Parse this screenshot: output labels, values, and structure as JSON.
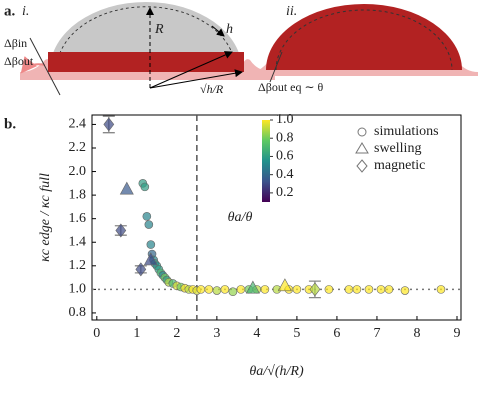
{
  "panel_a": {
    "label": "a.",
    "left": {
      "label": "i.",
      "R": "R",
      "h": "h",
      "delta_in": "Δβin",
      "delta_out": "Δβout",
      "sqrt": "√h/R"
    },
    "right": {
      "label": "ii.",
      "delta_eq": "Δβout eq ∼ θ"
    }
  },
  "chart_data": {
    "type": "scatter",
    "panel_label": "b.",
    "x_label": "θa/√(h/R)",
    "y_label": "κc edge / κc full",
    "xlim": [
      -0.12,
      9.1
    ],
    "ylim": [
      0.74,
      2.48
    ],
    "xticks": [
      0,
      1,
      2,
      3,
      4,
      5,
      6,
      7,
      8,
      9
    ],
    "yticks": [
      0.8,
      {
        "value": 1,
        "label": "1.0"
      },
      1.2,
      1.4,
      1.6,
      1.8,
      {
        "value": 2,
        "label": "2.0"
      },
      2.2,
      2.4
    ],
    "vline": 2.5,
    "hline": 1,
    "colorbar": {
      "label": "θa/θ",
      "clim": [
        0.1,
        1.0
      ],
      "ticks": [
        0.2,
        0.4,
        0.6,
        0.8,
        {
          "value": 1,
          "label": "1.0"
        }
      ]
    },
    "legend": "upper right",
    "series": [
      {
        "name": "simulations",
        "marker": "circle",
        "x": [
          1.15,
          1.2,
          1.25,
          1.3,
          1.35,
          1.38,
          1.42,
          1.45,
          1.5,
          1.55,
          1.6,
          1.65,
          1.7,
          1.75,
          1.8,
          1.9,
          2.0,
          2.1,
          2.2,
          2.3,
          2.4,
          2.5,
          2.6,
          2.8,
          3.0,
          3.2,
          3.4,
          3.6,
          3.8,
          4.0,
          4.2,
          4.5,
          4.8,
          5.0,
          5.3,
          5.8,
          6.3,
          6.5,
          6.8,
          7.1,
          7.3,
          7.7,
          8.6
        ],
        "values": [
          1.9,
          1.87,
          1.62,
          1.55,
          1.38,
          1.3,
          1.25,
          1.22,
          1.2,
          1.17,
          1.14,
          1.12,
          1.1,
          1.08,
          1.06,
          1.05,
          1.03,
          1.02,
          1.01,
          1.0,
          1.0,
          0.99,
          1.0,
          1.0,
          0.99,
          1.0,
          0.98,
          1.0,
          1.0,
          1.0,
          1.0,
          1.0,
          1.0,
          1.0,
          1.0,
          1.0,
          1.0,
          1.0,
          1.0,
          1.0,
          1.0,
          0.99,
          1.0
        ],
        "c": [
          0.6,
          0.6,
          0.5,
          0.5,
          0.5,
          0.4,
          0.5,
          0.6,
          0.55,
          0.6,
          0.7,
          0.5,
          0.8,
          0.6,
          0.9,
          0.7,
          0.95,
          0.8,
          1.0,
          0.9,
          1.0,
          0.95,
          1.0,
          1.0,
          0.9,
          1.0,
          0.85,
          1.0,
          0.8,
          0.9,
          1.0,
          0.9,
          1.0,
          1.0,
          1.0,
          1.0,
          1.0,
          1.0,
          1.0,
          1.0,
          1.0,
          1.0,
          1.0
        ]
      },
      {
        "name": "swelling",
        "marker": "triangle",
        "x": [
          0.75,
          1.35,
          3.9,
          4.7
        ],
        "values": [
          1.85,
          1.25,
          1.01,
          1.03
        ],
        "c": [
          0.35,
          0.3,
          0.7,
          1.0
        ]
      },
      {
        "name": "magnetic",
        "marker": "diamond",
        "x": [
          0.3,
          0.6,
          1.1,
          5.45
        ],
        "values": [
          2.4,
          1.5,
          1.17,
          1.0
        ],
        "errors": [
          0.07,
          0.04,
          0.03,
          0.07
        ],
        "c": [
          0.3,
          0.3,
          0.3,
          0.9
        ]
      }
    ]
  }
}
